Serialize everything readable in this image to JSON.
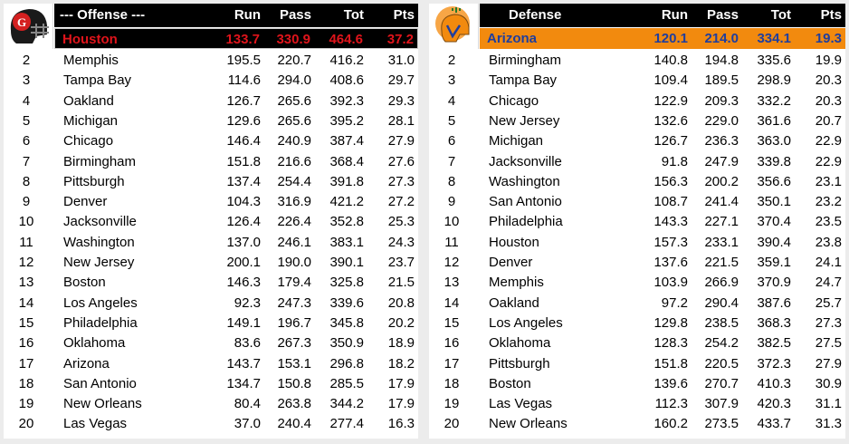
{
  "headers": {
    "run": "Run",
    "pass": "Pass",
    "tot": "Tot",
    "pts": "Pts"
  },
  "colors": {
    "offense_top_bg": "#000000",
    "offense_top_text": "#e0141b",
    "defense_top_bg": "#f28a0e",
    "defense_top_text": "#1f3e9e"
  },
  "offense": {
    "title": "--- Offense ---",
    "logo_icon": "helmet-logo-red-black",
    "top": {
      "team": "Houston",
      "run": "133.7",
      "pass": "330.9",
      "tot": "464.6",
      "pts": "37.2"
    },
    "rows": [
      {
        "rank": "2",
        "team": "Memphis",
        "run": "195.5",
        "pass": "220.7",
        "tot": "416.2",
        "pts": "31.0"
      },
      {
        "rank": "3",
        "team": "Tampa Bay",
        "run": "114.6",
        "pass": "294.0",
        "tot": "408.6",
        "pts": "29.7"
      },
      {
        "rank": "4",
        "team": "Oakland",
        "run": "126.7",
        "pass": "265.6",
        "tot": "392.3",
        "pts": "29.3"
      },
      {
        "rank": "5",
        "team": "Michigan",
        "run": "129.6",
        "pass": "265.6",
        "tot": "395.2",
        "pts": "28.1"
      },
      {
        "rank": "6",
        "team": "Chicago",
        "run": "146.4",
        "pass": "240.9",
        "tot": "387.4",
        "pts": "27.9"
      },
      {
        "rank": "7",
        "team": "Birmingham",
        "run": "151.8",
        "pass": "216.6",
        "tot": "368.4",
        "pts": "27.6"
      },
      {
        "rank": "8",
        "team": "Pittsburgh",
        "run": "137.4",
        "pass": "254.4",
        "tot": "391.8",
        "pts": "27.3"
      },
      {
        "rank": "9",
        "team": "Denver",
        "run": "104.3",
        "pass": "316.9",
        "tot": "421.2",
        "pts": "27.2"
      },
      {
        "rank": "10",
        "team": "Jacksonville",
        "run": "126.4",
        "pass": "226.4",
        "tot": "352.8",
        "pts": "25.3"
      },
      {
        "rank": "11",
        "team": "Washington",
        "run": "137.0",
        "pass": "246.1",
        "tot": "383.1",
        "pts": "24.3"
      },
      {
        "rank": "12",
        "team": "New Jersey",
        "run": "200.1",
        "pass": "190.0",
        "tot": "390.1",
        "pts": "23.7"
      },
      {
        "rank": "13",
        "team": "Boston",
        "run": "146.3",
        "pass": "179.4",
        "tot": "325.8",
        "pts": "21.5"
      },
      {
        "rank": "14",
        "team": "Los Angeles",
        "run": "92.3",
        "pass": "247.3",
        "tot": "339.6",
        "pts": "20.8"
      },
      {
        "rank": "15",
        "team": "Philadelphia",
        "run": "149.1",
        "pass": "196.7",
        "tot": "345.8",
        "pts": "20.2"
      },
      {
        "rank": "16",
        "team": "Oklahoma",
        "run": "83.6",
        "pass": "267.3",
        "tot": "350.9",
        "pts": "18.9"
      },
      {
        "rank": "17",
        "team": "Arizona",
        "run": "143.7",
        "pass": "153.1",
        "tot": "296.8",
        "pts": "18.2"
      },
      {
        "rank": "18",
        "team": "San Antonio",
        "run": "134.7",
        "pass": "150.8",
        "tot": "285.5",
        "pts": "17.9"
      },
      {
        "rank": "19",
        "team": "New Orleans",
        "run": "80.4",
        "pass": "263.8",
        "tot": "344.2",
        "pts": "17.9"
      },
      {
        "rank": "20",
        "team": "Las Vegas",
        "run": "37.0",
        "pass": "240.4",
        "tot": "277.4",
        "pts": "16.3"
      }
    ]
  },
  "defense": {
    "title": "Defense",
    "logo_icon": "cactus-helmet-logo-orange",
    "top": {
      "team": "Arizona",
      "run": "120.1",
      "pass": "214.0",
      "tot": "334.1",
      "pts": "19.3"
    },
    "rows": [
      {
        "rank": "2",
        "team": "Birmingham",
        "run": "140.8",
        "pass": "194.8",
        "tot": "335.6",
        "pts": "19.9"
      },
      {
        "rank": "3",
        "team": "Tampa Bay",
        "run": "109.4",
        "pass": "189.5",
        "tot": "298.9",
        "pts": "20.3"
      },
      {
        "rank": "4",
        "team": "Chicago",
        "run": "122.9",
        "pass": "209.3",
        "tot": "332.2",
        "pts": "20.3"
      },
      {
        "rank": "5",
        "team": "New Jersey",
        "run": "132.6",
        "pass": "229.0",
        "tot": "361.6",
        "pts": "20.7"
      },
      {
        "rank": "6",
        "team": "Michigan",
        "run": "126.7",
        "pass": "236.3",
        "tot": "363.0",
        "pts": "22.9"
      },
      {
        "rank": "7",
        "team": "Jacksonville",
        "run": "91.8",
        "pass": "247.9",
        "tot": "339.8",
        "pts": "22.9"
      },
      {
        "rank": "8",
        "team": "Washington",
        "run": "156.3",
        "pass": "200.2",
        "tot": "356.6",
        "pts": "23.1"
      },
      {
        "rank": "9",
        "team": "San Antonio",
        "run": "108.7",
        "pass": "241.4",
        "tot": "350.1",
        "pts": "23.2"
      },
      {
        "rank": "10",
        "team": "Philadelphia",
        "run": "143.3",
        "pass": "227.1",
        "tot": "370.4",
        "pts": "23.5"
      },
      {
        "rank": "11",
        "team": "Houston",
        "run": "157.3",
        "pass": "233.1",
        "tot": "390.4",
        "pts": "23.8"
      },
      {
        "rank": "12",
        "team": "Denver",
        "run": "137.6",
        "pass": "221.5",
        "tot": "359.1",
        "pts": "24.1"
      },
      {
        "rank": "13",
        "team": "Memphis",
        "run": "103.9",
        "pass": "266.9",
        "tot": "370.9",
        "pts": "24.7"
      },
      {
        "rank": "14",
        "team": "Oakland",
        "run": "97.2",
        "pass": "290.4",
        "tot": "387.6",
        "pts": "25.7"
      },
      {
        "rank": "15",
        "team": "Los Angeles",
        "run": "129.8",
        "pass": "238.5",
        "tot": "368.3",
        "pts": "27.3"
      },
      {
        "rank": "16",
        "team": "Oklahoma",
        "run": "128.3",
        "pass": "254.2",
        "tot": "382.5",
        "pts": "27.5"
      },
      {
        "rank": "17",
        "team": "Pittsburgh",
        "run": "151.8",
        "pass": "220.5",
        "tot": "372.3",
        "pts": "27.9"
      },
      {
        "rank": "18",
        "team": "Boston",
        "run": "139.6",
        "pass": "270.7",
        "tot": "410.3",
        "pts": "30.9"
      },
      {
        "rank": "19",
        "team": "Las Vegas",
        "run": "112.3",
        "pass": "307.9",
        "tot": "420.3",
        "pts": "31.1"
      },
      {
        "rank": "20",
        "team": "New Orleans",
        "run": "160.2",
        "pass": "273.5",
        "tot": "433.7",
        "pts": "31.3"
      }
    ]
  }
}
